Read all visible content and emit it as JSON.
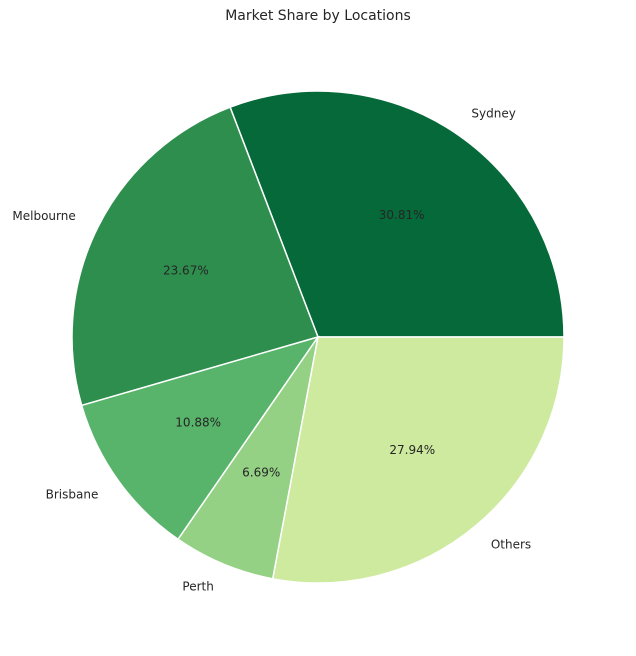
{
  "chart_data": {
    "type": "pie",
    "title": "Market Share by Locations",
    "categories": [
      "Sydney",
      "Melbourne",
      "Brisbane",
      "Perth",
      "Others"
    ],
    "values": [
      30.81,
      23.67,
      10.88,
      6.69,
      27.94
    ],
    "value_labels": [
      "30.81%",
      "23.67%",
      "10.88%",
      "6.69%",
      "27.94%"
    ],
    "colors": [
      "#056939",
      "#2e8e4e",
      "#58b46a",
      "#94d184",
      "#cdea9e"
    ],
    "start_angle_deg": 0,
    "direction": "counterclockwise"
  }
}
